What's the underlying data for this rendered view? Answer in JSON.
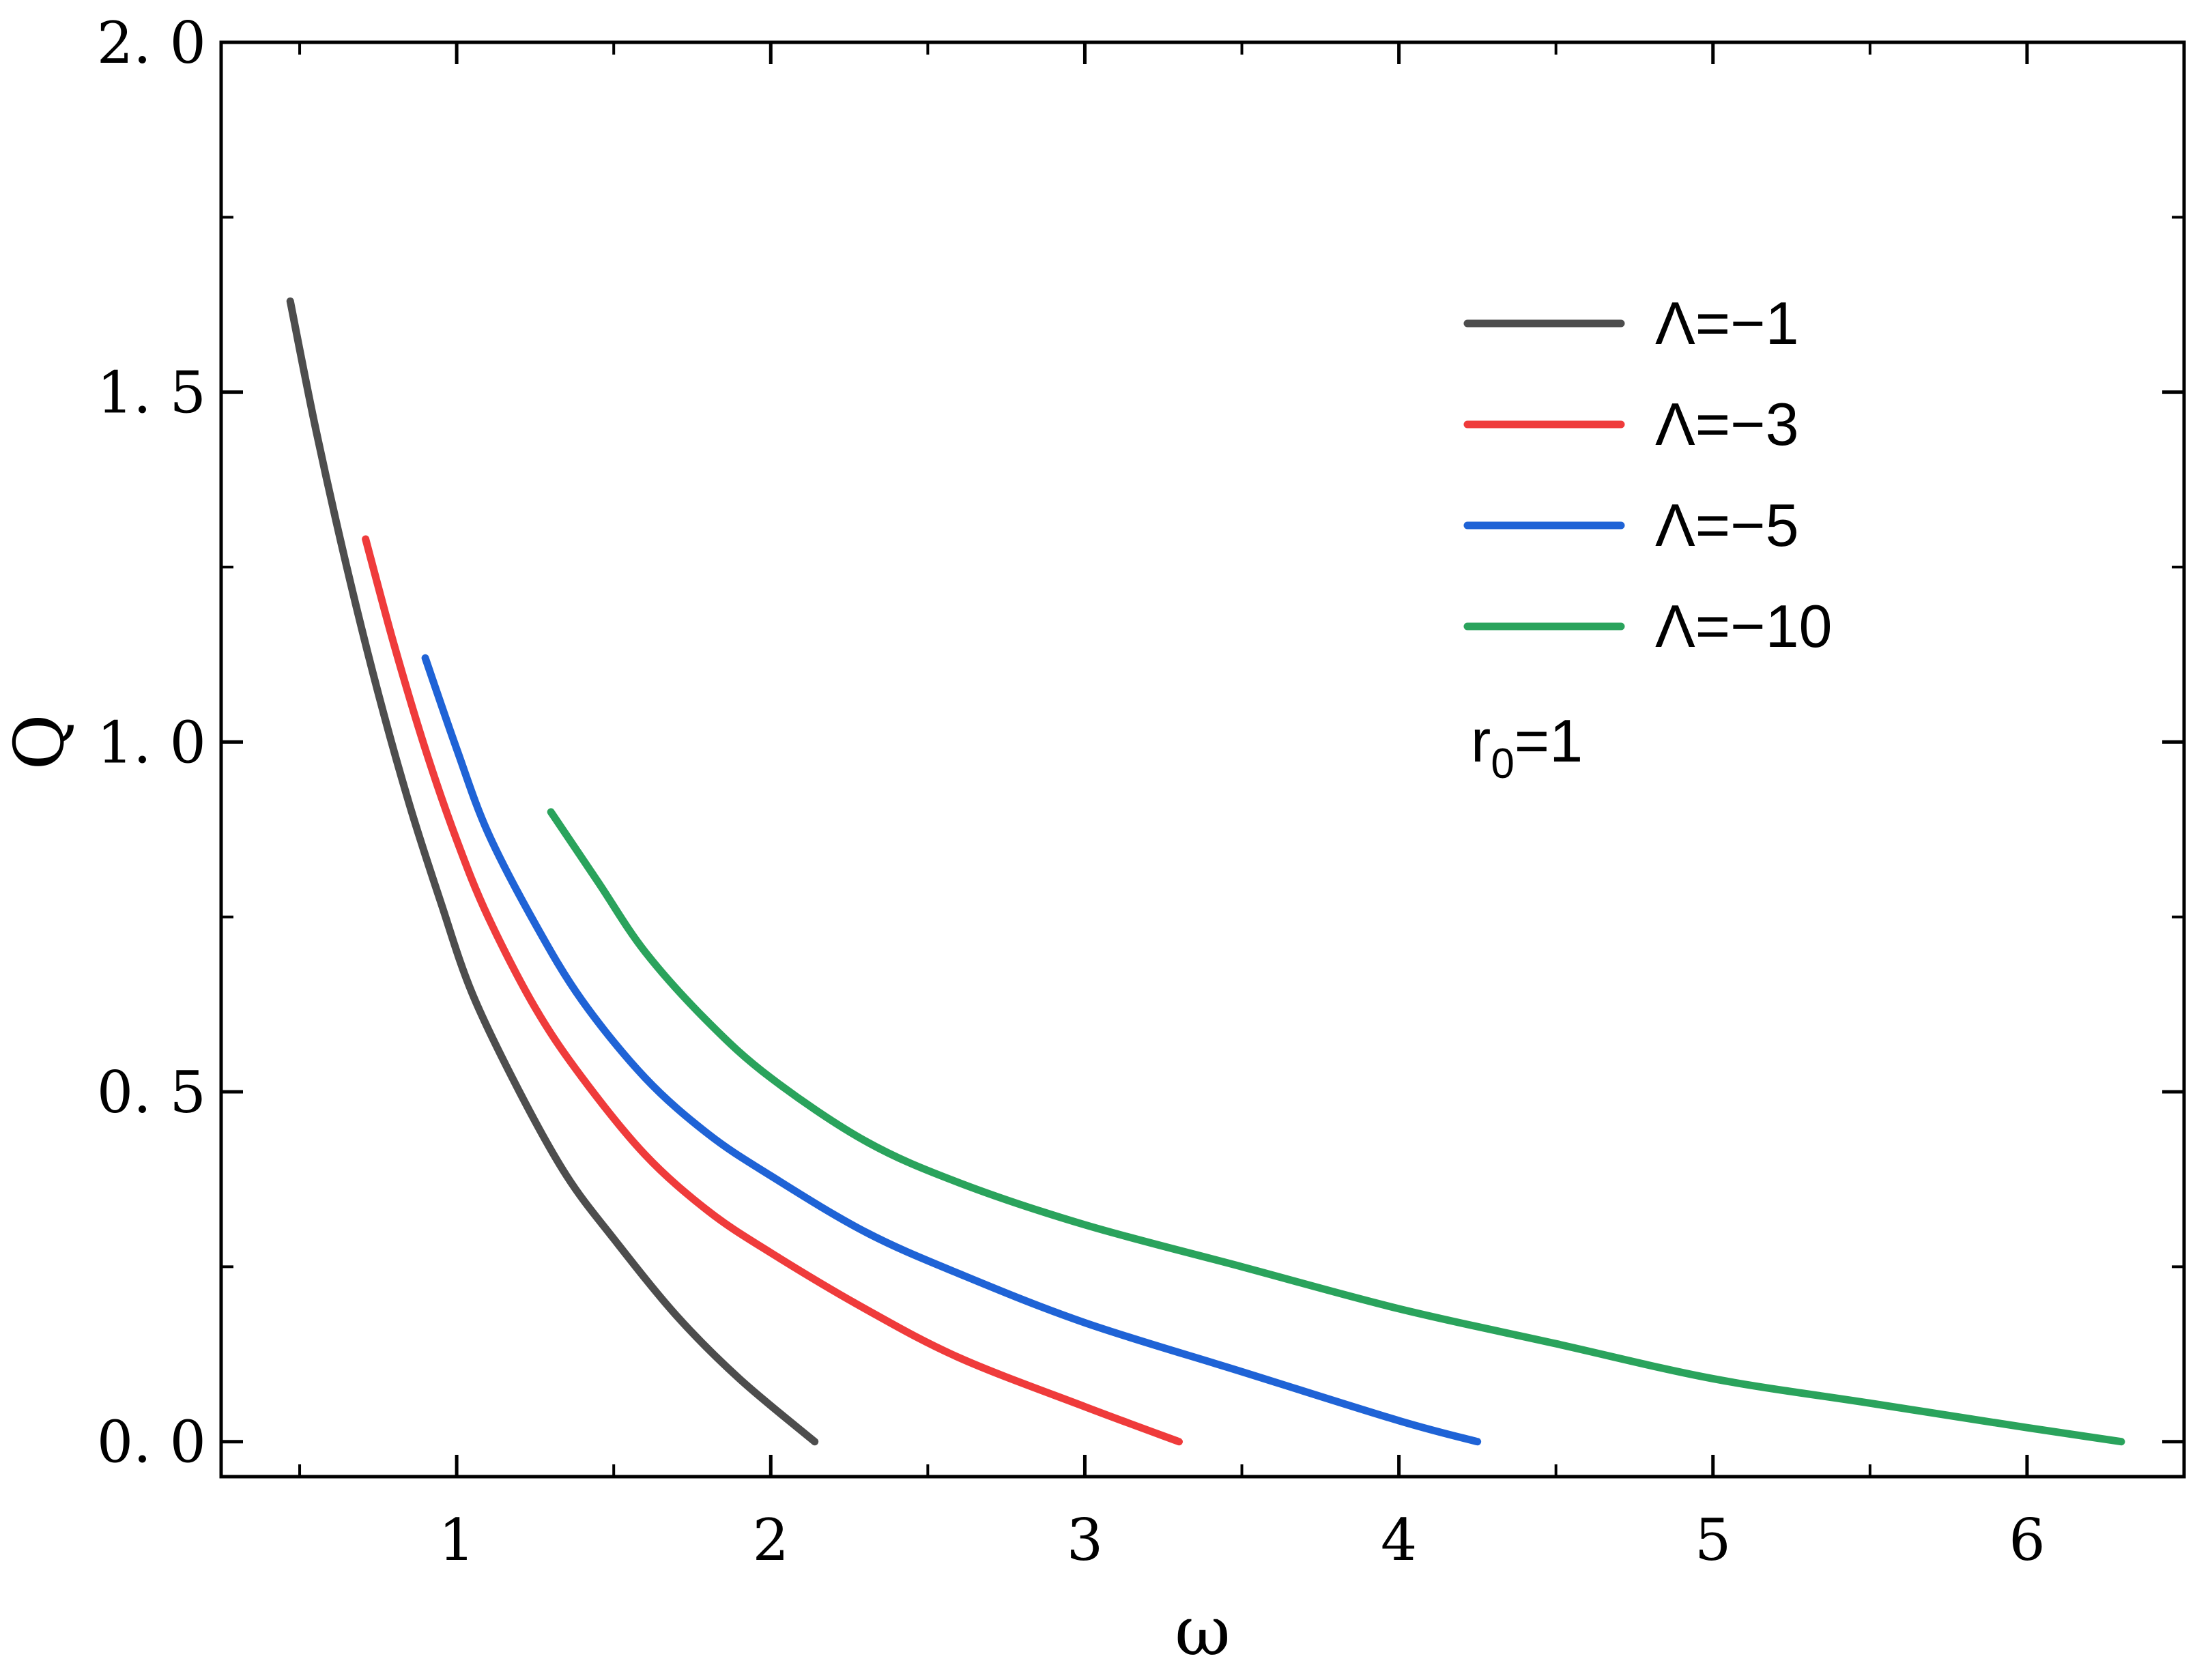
{
  "chart_data": {
    "type": "line",
    "xlabel": "ω",
    "ylabel": "Q",
    "xlim": [
      0.25,
      6.5
    ],
    "ylim": [
      -0.05,
      2.0
    ],
    "x_ticks": [
      1,
      2,
      3,
      4,
      5,
      6
    ],
    "x_tick_labels": [
      "1",
      "2",
      "3",
      "4",
      "5",
      "6"
    ],
    "y_ticks": [
      0.0,
      0.5,
      1.0,
      1.5,
      2.0
    ],
    "y_tick_labels": [
      "0. 0",
      "0. 5",
      "1. 0",
      "1. 5",
      "2. 0"
    ],
    "grid": false,
    "legend_position": "top-right",
    "annotation": {
      "main": "r",
      "sub": "0",
      "rest": "=1"
    },
    "series": [
      {
        "name": "Λ=−1",
        "color": "#4d4d4d",
        "x": [
          0.47,
          0.55,
          0.65,
          0.75,
          0.85,
          0.95,
          1.05,
          1.2,
          1.35,
          1.5,
          1.7,
          1.9,
          2.14
        ],
        "y": [
          1.63,
          1.45,
          1.25,
          1.07,
          0.91,
          0.77,
          0.64,
          0.5,
          0.38,
          0.29,
          0.18,
          0.09,
          0.0
        ]
      },
      {
        "name": "Λ=−3",
        "color": "#ef3b3b",
        "x": [
          0.71,
          0.8,
          0.9,
          1.0,
          1.1,
          1.25,
          1.4,
          1.6,
          1.8,
          2.0,
          2.3,
          2.6,
          3.0,
          3.3
        ],
        "y": [
          1.29,
          1.14,
          0.99,
          0.86,
          0.75,
          0.62,
          0.52,
          0.41,
          0.33,
          0.27,
          0.19,
          0.12,
          0.05,
          0.0
        ]
      },
      {
        "name": "Λ=−5",
        "color": "#1f63d6",
        "x": [
          0.9,
          1.0,
          1.1,
          1.25,
          1.4,
          1.6,
          1.8,
          2.0,
          2.3,
          2.6,
          3.0,
          3.5,
          4.0,
          4.25
        ],
        "y": [
          1.12,
          0.99,
          0.87,
          0.74,
          0.63,
          0.52,
          0.44,
          0.38,
          0.3,
          0.24,
          0.17,
          0.1,
          0.03,
          0.0
        ]
      },
      {
        "name": "Λ=−10",
        "color": "#2aa35c",
        "x": [
          1.3,
          1.45,
          1.6,
          1.8,
          2.0,
          2.3,
          2.6,
          3.0,
          3.5,
          4.0,
          4.5,
          5.0,
          5.5,
          6.0,
          6.3
        ],
        "y": [
          0.9,
          0.8,
          0.7,
          0.6,
          0.52,
          0.43,
          0.37,
          0.31,
          0.25,
          0.19,
          0.14,
          0.09,
          0.055,
          0.02,
          0.0
        ]
      }
    ]
  }
}
